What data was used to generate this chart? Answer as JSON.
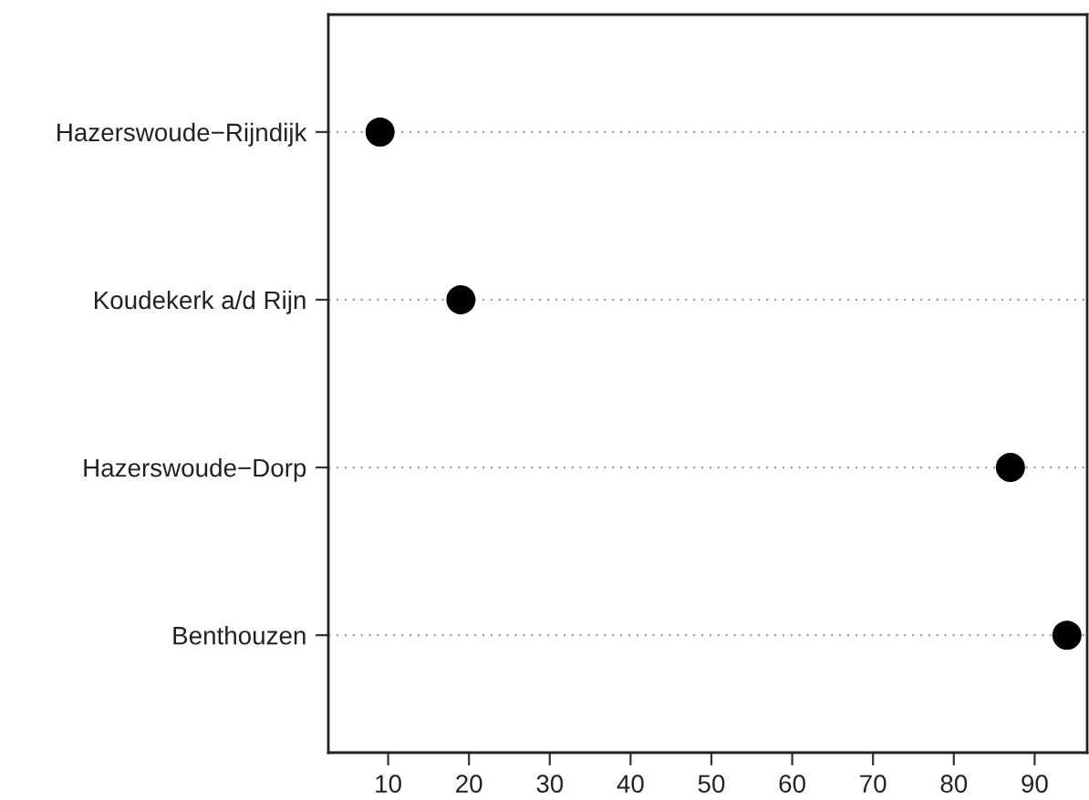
{
  "chart_data": {
    "type": "scatter",
    "orientation": "horizontal",
    "categories": [
      "Hazerswoude−Rijndijk",
      "Koudekerk a/d Rijn",
      "Hazerswoude−Dorp",
      "Benthouzen"
    ],
    "series": [
      {
        "color": "#000000",
        "values": [
          9,
          19,
          87,
          94
        ]
      }
    ],
    "xlim": [
      2.6,
      96.5
    ],
    "xticks": [
      10,
      20,
      30,
      40,
      50,
      60,
      70,
      80,
      90
    ],
    "grid": "y",
    "marker": "circle",
    "legend": false
  }
}
